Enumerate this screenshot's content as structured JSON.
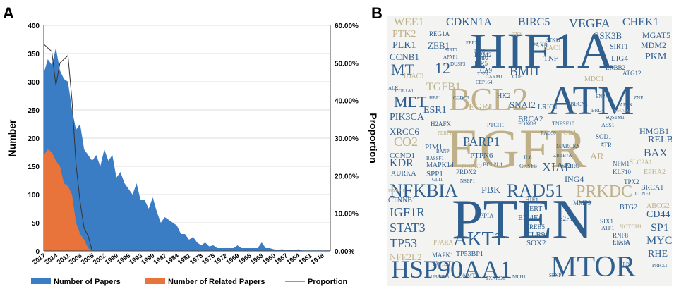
{
  "panels": {
    "a_label": "A",
    "b_label": "B"
  },
  "chart_data": {
    "type": "area",
    "title": "",
    "xlabel": "",
    "ylabel": "Number",
    "y2label": "Proportion",
    "ylim": [
      0,
      400
    ],
    "y2lim": [
      0,
      0.6
    ],
    "y_ticks": [
      "0",
      "50",
      "100",
      "150",
      "200",
      "250",
      "300",
      "350",
      "400"
    ],
    "y2_ticks": [
      "0.00%",
      "10.00%",
      "20.00%",
      "30.00%",
      "40.00%",
      "50.00%",
      "60.00%"
    ],
    "x_ticks": [
      "2017",
      "2014",
      "2011",
      "2008",
      "2005",
      "2002",
      "1999",
      "1996",
      "1993",
      "1990",
      "1987",
      "1984",
      "1981",
      "1978",
      "1975",
      "1972",
      "1969",
      "1966",
      "1963",
      "1960",
      "1957",
      "1954",
      "1951",
      "1948"
    ],
    "x_range": [
      2017,
      1946
    ],
    "grid": true,
    "legend_position": "bottom",
    "series": [
      {
        "name": "Number of Papers",
        "kind": "area",
        "color": "#3b7dc4",
        "x": [
          2017,
          2016,
          2015,
          2014,
          2013,
          2012,
          2011,
          2010,
          2009,
          2008,
          2007,
          2006,
          2005,
          2004,
          2003,
          2002,
          2001,
          2000,
          1999,
          1998,
          1997,
          1996,
          1995,
          1994,
          1993,
          1992,
          1991,
          1990,
          1989,
          1988,
          1987,
          1986,
          1985,
          1984,
          1983,
          1982,
          1981,
          1980,
          1979,
          1978,
          1977,
          1976,
          1975,
          1974,
          1973,
          1972,
          1971,
          1970,
          1969,
          1968,
          1967,
          1966,
          1965,
          1964,
          1963,
          1962,
          1961,
          1960,
          1959,
          1958,
          1957,
          1956,
          1955,
          1954,
          1953,
          1952,
          1951,
          1950,
          1949,
          1948,
          1947,
          1946
        ],
        "y": [
          315,
          340,
          330,
          360,
          320,
          305,
          300,
          250,
          215,
          225,
          180,
          170,
          160,
          170,
          150,
          180,
          160,
          170,
          130,
          140,
          120,
          110,
          100,
          120,
          90,
          90,
          75,
          95,
          70,
          50,
          60,
          55,
          50,
          45,
          30,
          30,
          20,
          25,
          15,
          10,
          15,
          8,
          10,
          5,
          5,
          5,
          5,
          5,
          10,
          5,
          5,
          5,
          5,
          5,
          15,
          5,
          5,
          3,
          2,
          3,
          2,
          2,
          1,
          3,
          1,
          1,
          1,
          1,
          1,
          1,
          1,
          1
        ]
      },
      {
        "name": "Number of Related Papers",
        "kind": "area",
        "color": "#e8743b",
        "x": [
          2017,
          2016,
          2015,
          2014,
          2013,
          2012,
          2011,
          2010,
          2009,
          2008,
          2007,
          2006,
          2005,
          2004
        ],
        "y": [
          170,
          180,
          175,
          160,
          150,
          120,
          115,
          100,
          50,
          30,
          20,
          5,
          0,
          0
        ]
      },
      {
        "name": "Proportion",
        "kind": "line",
        "axis": "right",
        "color": "#333333",
        "x": [
          2017,
          2016,
          2015,
          2014,
          2013,
          2012,
          2011,
          2010,
          2009,
          2008,
          2007,
          2006,
          2005,
          2004
        ],
        "y": [
          0.55,
          0.54,
          0.53,
          0.44,
          0.5,
          0.51,
          0.52,
          0.4,
          0.23,
          0.13,
          0.06,
          0.04,
          0.0,
          0.0
        ]
      }
    ]
  },
  "wordcloud": {
    "words": [
      {
        "t": "HIF1A",
        "c": "#2f5f8f",
        "s": 72
      },
      {
        "t": "EGFR",
        "c": "#bfb089",
        "s": 78
      },
      {
        "t": "PTEN",
        "c": "#2f5f8f",
        "s": 80
      },
      {
        "t": "ATM",
        "c": "#2f5f8f",
        "s": 58
      },
      {
        "t": "BCL2",
        "c": "#bfb089",
        "s": 46
      },
      {
        "t": "MTOR",
        "c": "#2f5f8f",
        "s": 42
      },
      {
        "t": "HSP90AA1",
        "c": "#2f5f8f",
        "s": 36
      },
      {
        "t": "NFKBIA",
        "c": "#2f5f8f",
        "s": 26
      },
      {
        "t": "RAD51",
        "c": "#2f5f8f",
        "s": 26
      },
      {
        "t": "PRKDC",
        "c": "#bfb089",
        "s": 24
      },
      {
        "t": "AKT1",
        "c": "#2f5f8f",
        "s": 28
      },
      {
        "t": "CDKN1A",
        "c": "#2f5f8f",
        "s": 16
      },
      {
        "t": "BIRC5",
        "c": "#2f5f8f",
        "s": 16
      },
      {
        "t": "VEGFA",
        "c": "#2f5f8f",
        "s": 18
      },
      {
        "t": "CHEK1",
        "c": "#2f5f8f",
        "s": 16
      },
      {
        "t": "WEE1",
        "c": "#bfb089",
        "s": 16
      },
      {
        "t": "PTK2",
        "c": "#bfb089",
        "s": 14
      },
      {
        "t": "PLK1",
        "c": "#2f5f8f",
        "s": 14
      },
      {
        "t": "ZEB1",
        "c": "#2f5f8f",
        "s": 13
      },
      {
        "t": "CCNB1",
        "c": "#2f5f8f",
        "s": 13
      },
      {
        "t": "MT",
        "c": "#2f5f8f",
        "s": 22
      },
      {
        "t": "12",
        "c": "#2f5f8f",
        "s": 22
      },
      {
        "t": "BMI1",
        "c": "#2f5f8f",
        "s": 18
      },
      {
        "t": "MET",
        "c": "#2f5f8f",
        "s": 22
      },
      {
        "t": "TGFB1",
        "c": "#bfb089",
        "s": 16
      },
      {
        "t": "ESR1",
        "c": "#2f5f8f",
        "s": 14
      },
      {
        "t": "EGR1",
        "c": "#bfb089",
        "s": 14
      },
      {
        "t": "SNAI2",
        "c": "#2f5f8f",
        "s": 13
      },
      {
        "t": "PIK3CA",
        "c": "#2f5f8f",
        "s": 14
      },
      {
        "t": "CO2",
        "c": "#bfb089",
        "s": 18
      },
      {
        "t": "XRCC6",
        "c": "#2f5f8f",
        "s": 13
      },
      {
        "t": "PARP1",
        "c": "#2f5f8f",
        "s": 18
      },
      {
        "t": "KDR",
        "c": "#2f5f8f",
        "s": 16
      },
      {
        "t": "XIAP",
        "c": "#2f5f8f",
        "s": 18
      },
      {
        "t": "IGF1R",
        "c": "#2f5f8f",
        "s": 18
      },
      {
        "t": "STAT3",
        "c": "#2f5f8f",
        "s": 18
      },
      {
        "t": "TP53",
        "c": "#2f5f8f",
        "s": 18
      },
      {
        "t": "NFE2L2",
        "c": "#bfb089",
        "s": 13
      },
      {
        "t": "GSK3B",
        "c": "#2f5f8f",
        "s": 13
      },
      {
        "t": "MGAT5",
        "c": "#2f5f8f",
        "s": 12
      },
      {
        "t": "MDM2",
        "c": "#2f5f8f",
        "s": 12
      },
      {
        "t": "PKM",
        "c": "#2f5f8f",
        "s": 14
      },
      {
        "t": "HMGB1",
        "c": "#2f5f8f",
        "s": 12
      },
      {
        "t": "RELB",
        "c": "#2f5f8f",
        "s": 14
      },
      {
        "t": "BAX",
        "c": "#2f5f8f",
        "s": 16
      },
      {
        "t": "BRCA2",
        "c": "#2f5f8f",
        "s": 11
      },
      {
        "t": "SP1",
        "c": "#2f5f8f",
        "s": 16
      },
      {
        "t": "CD44",
        "c": "#2f5f8f",
        "s": 14
      },
      {
        "t": "MYC",
        "c": "#2f5f8f",
        "s": 16
      },
      {
        "t": "RHE",
        "c": "#2f5f8f",
        "s": 14
      },
      {
        "t": "PBK",
        "c": "#2f5f8f",
        "s": 14
      },
      {
        "t": "AR",
        "c": "#bfb089",
        "s": 14
      },
      {
        "t": "ING4",
        "c": "#2f5f8f",
        "s": 12
      },
      {
        "t": "MAPK14",
        "c": "#2f5f8f",
        "s": 10
      },
      {
        "t": "SPP1",
        "c": "#2f5f8f",
        "s": 11
      },
      {
        "t": "CCND1",
        "c": "#2f5f8f",
        "s": 11
      },
      {
        "t": "AURKA",
        "c": "#2f5f8f",
        "s": 10
      },
      {
        "t": "EIF4E",
        "c": "#2f5f8f",
        "s": 11
      },
      {
        "t": "SOX2",
        "c": "#2f5f8f",
        "s": 11
      },
      {
        "t": "TLR9",
        "c": "#2f5f8f",
        "s": 11
      },
      {
        "t": "LIG4",
        "c": "#2f5f8f",
        "s": 11
      },
      {
        "t": "SIRT1",
        "c": "#2f5f8f",
        "s": 10
      },
      {
        "t": "TP53BP1",
        "c": "#2f5f8f",
        "s": 10
      },
      {
        "t": "CTNNB1",
        "c": "#2f5f8f",
        "s": 10
      },
      {
        "t": "ABCG2",
        "c": "#bfb089",
        "s": 10
      },
      {
        "t": "EPHA2",
        "c": "#bfb089",
        "s": 10
      },
      {
        "t": "BRCA1",
        "c": "#2f5f8f",
        "s": 10
      },
      {
        "t": "PIM1",
        "c": "#2f5f8f",
        "s": 11
      },
      {
        "t": "PTPN6",
        "c": "#2f5f8f",
        "s": 11
      },
      {
        "t": "HK2",
        "c": "#2f5f8f",
        "s": 10
      },
      {
        "t": "TERT",
        "c": "#2f5f8f",
        "s": 10
      },
      {
        "t": "CREB5",
        "c": "#2f5f8f",
        "s": 9
      },
      {
        "t": "BTG2",
        "c": "#2f5f8f",
        "s": 10
      },
      {
        "t": "TOB1",
        "c": "#bfb089",
        "s": 10
      },
      {
        "t": "RAC1",
        "c": "#bfb089",
        "s": 10
      },
      {
        "t": "PAX9",
        "c": "#2f5f8f",
        "s": 9
      },
      {
        "t": "HDAC1",
        "c": "#bfb089",
        "s": 10
      },
      {
        "t": "IER5",
        "c": "#2f5f8f",
        "s": 9
      },
      {
        "t": "TNF",
        "c": "#2f5f8f",
        "s": 11
      },
      {
        "t": "REG1A",
        "c": "#2f5f8f",
        "s": 9
      },
      {
        "t": "MDC1",
        "c": "#bfb089",
        "s": 10
      },
      {
        "t": "RRM2",
        "c": "#2f5f8f",
        "s": 9
      },
      {
        "t": "CA9",
        "c": "#2f5f8f",
        "s": 9
      },
      {
        "t": "LRIG1",
        "c": "#2f5f8f",
        "s": 10
      },
      {
        "t": "TWIST1",
        "c": "#2f5f8f",
        "s": 9
      },
      {
        "t": "MAPK1",
        "c": "#2f5f8f",
        "s": 9
      },
      {
        "t": "PRDX2",
        "c": "#2f5f8f",
        "s": 9
      },
      {
        "t": "CHEK2",
        "c": "#bfb089",
        "s": 9
      },
      {
        "t": "MMP9",
        "c": "#2f5f8f",
        "s": 9
      },
      {
        "t": "HIF1",
        "c": "#2f5f8f",
        "s": 9
      },
      {
        "t": "DNMT1",
        "c": "#2f5f8f",
        "s": 8
      },
      {
        "t": "ATR",
        "c": "#2f5f8f",
        "s": 9
      },
      {
        "t": "SOD1",
        "c": "#2f5f8f",
        "s": 9
      },
      {
        "t": "ERBB2",
        "c": "#2f5f8f",
        "s": 9
      },
      {
        "t": "ATG12",
        "c": "#2f5f8f",
        "s": 9
      },
      {
        "t": "TPX2",
        "c": "#2f5f8f",
        "s": 9
      },
      {
        "t": "KLF10",
        "c": "#2f5f8f",
        "s": 9
      },
      {
        "t": "RNF8",
        "c": "#2f5f8f",
        "s": 9
      },
      {
        "t": "LDHA",
        "c": "#2f5f8f",
        "s": 9
      },
      {
        "t": "SIX1",
        "c": "#2f5f8f",
        "s": 9
      },
      {
        "t": "ATF1",
        "c": "#2f5f8f",
        "s": 8
      },
      {
        "t": "PPIA",
        "c": "#2f5f8f",
        "s": 9
      },
      {
        "t": "E2F1",
        "c": "#2f5f8f",
        "s": 9
      },
      {
        "t": "NPM1",
        "c": "#2f5f8f",
        "s": 9
      },
      {
        "t": "PPARA",
        "c": "#bfb089",
        "s": 9
      },
      {
        "t": "H2AFX",
        "c": "#2f5f8f",
        "s": 9
      },
      {
        "t": "SLC2A1",
        "c": "#bfb089",
        "s": 9
      },
      {
        "t": "BCL2L1",
        "c": "#2f5f8f",
        "s": 8
      },
      {
        "t": "MARCKS",
        "c": "#2f5f8f",
        "s": 8
      },
      {
        "t": "SPARC",
        "c": "#2f5f8f",
        "s": 8
      },
      {
        "t": "IL6",
        "c": "#2f5f8f",
        "s": 8
      },
      {
        "t": "CKS1B",
        "c": "#2f5f8f",
        "s": 8
      },
      {
        "t": "FOXO3",
        "c": "#2f5f8f",
        "s": 8
      },
      {
        "t": "PTCH1",
        "c": "#2f5f8f",
        "s": 8
      },
      {
        "t": "TNFSF10",
        "c": "#2f5f8f",
        "s": 8
      },
      {
        "t": "CASP3",
        "c": "#2f5f8f",
        "s": 8
      },
      {
        "t": "CEP164",
        "c": "#2f5f8f",
        "s": 7
      },
      {
        "t": "COL1A1",
        "c": "#2f5f8f",
        "s": 7
      },
      {
        "t": "HBP1",
        "c": "#2f5f8f",
        "s": 7
      },
      {
        "t": "BECN1",
        "c": "#2f5f8f",
        "s": 8
      },
      {
        "t": "BRD4",
        "c": "#2f5f8f",
        "s": 7
      },
      {
        "t": "SQSTM1",
        "c": "#2f5f8f",
        "s": 7
      },
      {
        "t": "ASS1",
        "c": "#2f5f8f",
        "s": 8
      },
      {
        "t": "NOTCH1",
        "c": "#bfb089",
        "s": 8
      },
      {
        "t": "TXNRD1",
        "c": "#2f5f8f",
        "s": 7
      },
      {
        "t": "MLH1",
        "c": "#2f5f8f",
        "s": 7
      },
      {
        "t": "UBE2D3",
        "c": "#2f5f8f",
        "s": 7
      },
      {
        "t": "SENP1",
        "c": "#2f5f8f",
        "s": 7
      },
      {
        "t": "APAF1",
        "c": "#2f5f8f",
        "s": 7
      },
      {
        "t": "SIRT7",
        "c": "#2f5f8f",
        "s": 7
      },
      {
        "t": "DUSP3",
        "c": "#2f5f8f",
        "s": 7
      },
      {
        "t": "CDH1",
        "c": "#2f5f8f",
        "s": 7
      },
      {
        "t": "CARM1",
        "c": "#2f5f8f",
        "s": 7
      },
      {
        "t": "ENPP1",
        "c": "#2f5f8f",
        "s": 7
      },
      {
        "t": "APTX",
        "c": "#2f5f8f",
        "s": 7
      },
      {
        "t": "SMAD3",
        "c": "#bfb089",
        "s": 7
      },
      {
        "t": "ZNF",
        "c": "#2f5f8f",
        "s": 7
      },
      {
        "t": "ZBTB7A",
        "c": "#2f5f8f",
        "s": 7
      },
      {
        "t": "BANP",
        "c": "#2f5f8f",
        "s": 7
      },
      {
        "t": "BASSF1",
        "c": "#2f5f8f",
        "s": 7
      },
      {
        "t": "GLI1",
        "c": "#2f5f8f",
        "s": 7
      },
      {
        "t": "NSBP1",
        "c": "#2f5f8f",
        "s": 7
      },
      {
        "t": "PEBP1",
        "c": "#bfb089",
        "s": 7
      },
      {
        "t": "CCDC6",
        "c": "#2f5f8f",
        "s": 7
      },
      {
        "t": "EMP2",
        "c": "#2f5f8f",
        "s": 7
      },
      {
        "t": "TP73",
        "c": "#2f5f8f",
        "s": 7
      },
      {
        "t": "IFI30",
        "c": "#2f5f8f",
        "s": 7
      },
      {
        "t": "RAD50",
        "c": "#2f5f8f",
        "s": 7
      },
      {
        "t": "TPP1",
        "c": "#bfb089",
        "s": 7
      },
      {
        "t": "EEF2K",
        "c": "#2f5f8f",
        "s": 7
      },
      {
        "t": "STK11",
        "c": "#2f5f8f",
        "s": 7
      },
      {
        "t": "ALK",
        "c": "#2f5f8f",
        "s": 7
      },
      {
        "t": "DAB2IP",
        "c": "#bfb089",
        "s": 7
      },
      {
        "t": "CCNE1",
        "c": "#2f5f8f",
        "s": 7
      },
      {
        "t": "PRRX1",
        "c": "#2f5f8f",
        "s": 7
      },
      {
        "t": "LRP1",
        "c": "#2f5f8f",
        "s": 7
      }
    ]
  },
  "legend": {
    "papers": "Number of Papers",
    "related": "Number of Related Papers",
    "proportion": "Proportion"
  }
}
